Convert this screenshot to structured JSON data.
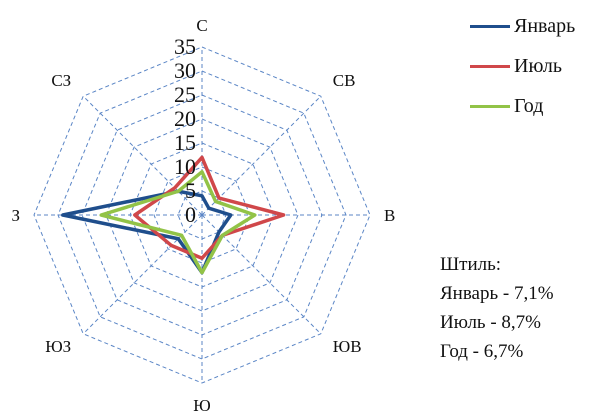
{
  "chart_data": {
    "type": "radar",
    "title": "",
    "directions": [
      "С",
      "СВ",
      "В",
      "ЮВ",
      "Ю",
      "ЮЗ",
      "З",
      "СЗ"
    ],
    "ticks": [
      "35",
      "30",
      "25",
      "20",
      "15",
      "10",
      "5",
      "0"
    ],
    "rmax": 35,
    "rings": [
      5,
      10,
      15,
      20,
      25,
      30,
      35
    ],
    "grid": true,
    "legend_position": "top-right",
    "series": [
      {
        "name": "Январь",
        "color": "#1f4e8c",
        "values": [
          4,
          2,
          6,
          5,
          12,
          7,
          29,
          7
        ]
      },
      {
        "name": "Июль",
        "color": "#d0474a",
        "values": [
          12,
          5,
          17,
          6,
          9,
          9,
          14,
          8
        ]
      },
      {
        "name": "Год",
        "color": "#92c347",
        "values": [
          9,
          4,
          11,
          6,
          12,
          6,
          21,
          7
        ]
      }
    ]
  },
  "calm_note": {
    "title": "Штиль:",
    "lines": [
      "Январь - 7,1%",
      "Июль - 8,7%",
      "Год - 6,7%"
    ]
  }
}
